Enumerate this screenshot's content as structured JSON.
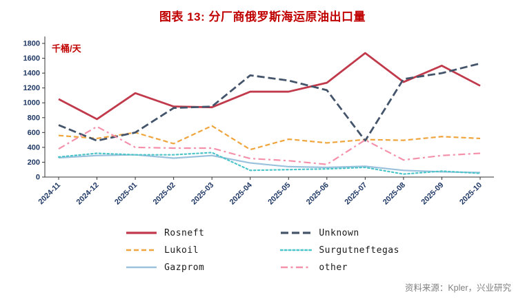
{
  "source_note": "资料来源：Kpler，兴业研究",
  "chart_data": {
    "type": "line",
    "title": "图表 13: 分厂商俄罗斯海运原油出口量",
    "unit_label": "千桶/天",
    "categories": [
      "2024-11",
      "2024-12",
      "2025-01",
      "2025-02",
      "2025-03",
      "2025-04",
      "2025-05",
      "2025-06",
      "2025-07",
      "2025-08",
      "2025-09",
      "2025-10"
    ],
    "ylim": [
      0,
      1800
    ],
    "ytick_step": 200,
    "grid": false,
    "legend_position": "bottom",
    "colors": {
      "title": "#c00000",
      "axis_labels": "#1f3864",
      "source_note": "#808080"
    },
    "series": [
      {
        "name": "Rosneft",
        "color": "#c13a4b",
        "dash": "solid",
        "width": 2.8,
        "values": [
          1050,
          780,
          1130,
          950,
          940,
          1150,
          1150,
          1270,
          1670,
          1280,
          1500,
          1230
        ]
      },
      {
        "name": "Lukoil",
        "color": "#f0a43c",
        "dash": "dashed",
        "width": 2.2,
        "values": [
          560,
          520,
          600,
          450,
          690,
          370,
          510,
          460,
          505,
          495,
          545,
          520
        ]
      },
      {
        "name": "Gazprom",
        "color": "#9bc2dd",
        "dash": "solid",
        "width": 2.2,
        "values": [
          260,
          290,
          300,
          255,
          290,
          190,
          140,
          130,
          145,
          90,
          70,
          60
        ]
      },
      {
        "name": "Unknown",
        "color": "#44546a",
        "dash": "dashed-long",
        "width": 2.8,
        "values": [
          700,
          490,
          600,
          930,
          950,
          1370,
          1300,
          1170,
          490,
          1320,
          1400,
          1530
        ]
      },
      {
        "name": "Surgutneftegas",
        "color": "#4cc5c9",
        "dash": "dotted",
        "width": 2.2,
        "values": [
          270,
          320,
          300,
          300,
          330,
          90,
          100,
          110,
          130,
          40,
          80,
          50
        ]
      },
      {
        "name": "other",
        "color": "#f590ab",
        "dash": "dashdot",
        "width": 2.2,
        "values": [
          380,
          680,
          400,
          390,
          390,
          250,
          220,
          170,
          500,
          230,
          290,
          320
        ]
      }
    ]
  }
}
